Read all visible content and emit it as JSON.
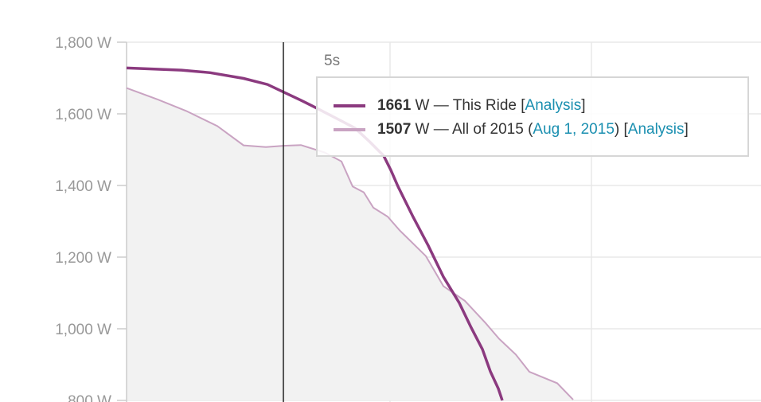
{
  "chart_data": {
    "type": "line",
    "ylim": [
      800,
      1800
    ],
    "y_ticks": [
      "1,800 W",
      "1,600 W",
      "1,400 W",
      "1,200 W",
      "1,000 W",
      "800 W"
    ],
    "y_tick_values": [
      1800,
      1600,
      1400,
      1200,
      1000,
      800
    ],
    "grid": true,
    "hover_label": "5s",
    "series": [
      {
        "name": "This Ride",
        "color": "#8b3a7f",
        "values": [
          1728,
          1722,
          1715,
          1699,
          1682,
          1661,
          1638,
          1617,
          1580,
          1560,
          1521,
          1483,
          1443,
          1397,
          1312,
          1232,
          1145,
          1072,
          1003,
          943,
          881,
          833,
          800
        ]
      },
      {
        "name": "All of 2015",
        "color": "#c9a3c2",
        "values": [
          1672,
          1641,
          1608,
          1566,
          1512,
          1507,
          1511,
          1513,
          1492,
          1467,
          1397,
          1381,
          1338,
          1313,
          1275,
          1203,
          1119,
          1078,
          1016,
          972,
          928,
          880,
          848,
          802
        ]
      }
    ],
    "legend": [
      {
        "value": "1661",
        "unit_text": " W — This Ride [",
        "link": "Analysis",
        "tail": "]"
      },
      {
        "value": "1507",
        "unit_text": " W — All of 2015 (",
        "date_link": "Aug 1, 2015",
        "mid": ") [",
        "link": "Analysis",
        "tail": "]"
      }
    ]
  }
}
